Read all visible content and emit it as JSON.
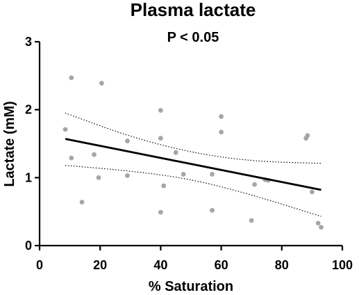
{
  "chart_data": {
    "type": "scatter",
    "title": "Plasma lactate",
    "subtitle": "P < 0.05",
    "xlabel": "% Saturation",
    "ylabel": "Lactate (mM)",
    "xlim": [
      0,
      100
    ],
    "ylim": [
      0,
      3
    ],
    "xticks": [
      0,
      20,
      40,
      60,
      80,
      100
    ],
    "yticks": [
      0,
      1,
      2,
      3
    ],
    "grid": false,
    "point_color": "#a6a6a6",
    "points": [
      {
        "x": 8.5,
        "y": 1.71
      },
      {
        "x": 10.5,
        "y": 2.47
      },
      {
        "x": 10.5,
        "y": 1.29
      },
      {
        "x": 14,
        "y": 0.64
      },
      {
        "x": 18,
        "y": 1.34
      },
      {
        "x": 19.5,
        "y": 1.0
      },
      {
        "x": 20.5,
        "y": 2.39
      },
      {
        "x": 29,
        "y": 1.54
      },
      {
        "x": 29,
        "y": 1.03
      },
      {
        "x": 40,
        "y": 1.99
      },
      {
        "x": 40,
        "y": 1.58
      },
      {
        "x": 40,
        "y": 0.49
      },
      {
        "x": 41,
        "y": 0.88
      },
      {
        "x": 45,
        "y": 1.37
      },
      {
        "x": 47.5,
        "y": 1.05
      },
      {
        "x": 57,
        "y": 1.05
      },
      {
        "x": 57,
        "y": 0.52
      },
      {
        "x": 60,
        "y": 1.9
      },
      {
        "x": 60,
        "y": 1.67
      },
      {
        "x": 70,
        "y": 0.37
      },
      {
        "x": 71,
        "y": 0.9
      },
      {
        "x": 74.5,
        "y": 0.97
      },
      {
        "x": 75.5,
        "y": 0.96
      },
      {
        "x": 88,
        "y": 1.58
      },
      {
        "x": 88.5,
        "y": 1.62
      },
      {
        "x": 90,
        "y": 0.79
      },
      {
        "x": 92,
        "y": 0.33
      },
      {
        "x": 93,
        "y": 0.27
      }
    ],
    "regression": {
      "x": [
        8.5,
        93
      ],
      "y": [
        1.57,
        0.82
      ]
    },
    "confidence_band": {
      "upper": {
        "x": [
          8.5,
          30,
          50,
          70,
          93
        ],
        "y": [
          1.95,
          1.6,
          1.37,
          1.24,
          1.21
        ]
      },
      "lower": {
        "x": [
          8.5,
          30,
          50,
          70,
          93
        ],
        "y": [
          1.18,
          1.1,
          0.98,
          0.75,
          0.43
        ]
      }
    }
  }
}
